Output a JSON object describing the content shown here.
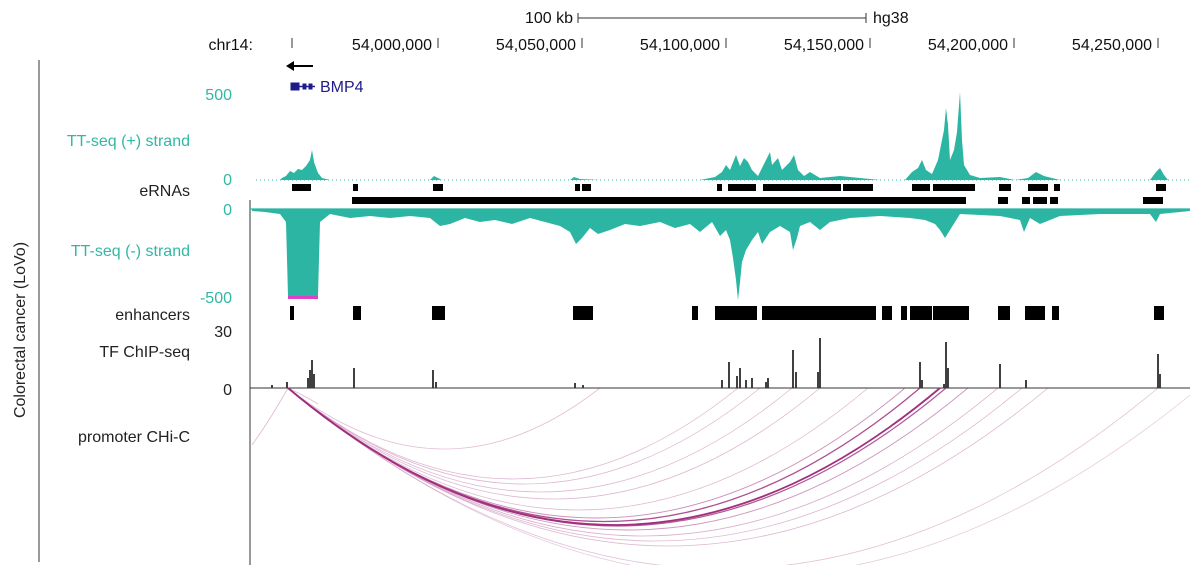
{
  "header": {
    "scale_label": "100 kb",
    "assembly": "hg38",
    "chrom_label": "chr14:",
    "positions": [
      "54,000,000",
      "54,050,000",
      "54,100,000",
      "54,150,000",
      "54,200,000",
      "54,250,000"
    ]
  },
  "gene": {
    "name": "BMP4",
    "strand": "minus"
  },
  "sample_label": "Colorectal cancer (LoVo)",
  "tracks": {
    "tt_plus": {
      "label": "TT-seq (+) strand",
      "max": "500",
      "min": "0"
    },
    "erna": {
      "label": "eRNAs"
    },
    "tt_minus": {
      "label": "TT-seq (-) strand",
      "max": "0",
      "min": "-500"
    },
    "enh": {
      "label": "enhancers"
    },
    "tf": {
      "label": "TF ChIP-seq",
      "max": "30",
      "min": "0"
    },
    "chic": {
      "label": "promoter CHi-C"
    }
  },
  "colors": {
    "tt_signal": "#2bb5a2",
    "tt_label": "#30b8a5",
    "gene": "#1f1b8a",
    "interaction": "#a0307e",
    "black": "#000000"
  }
}
